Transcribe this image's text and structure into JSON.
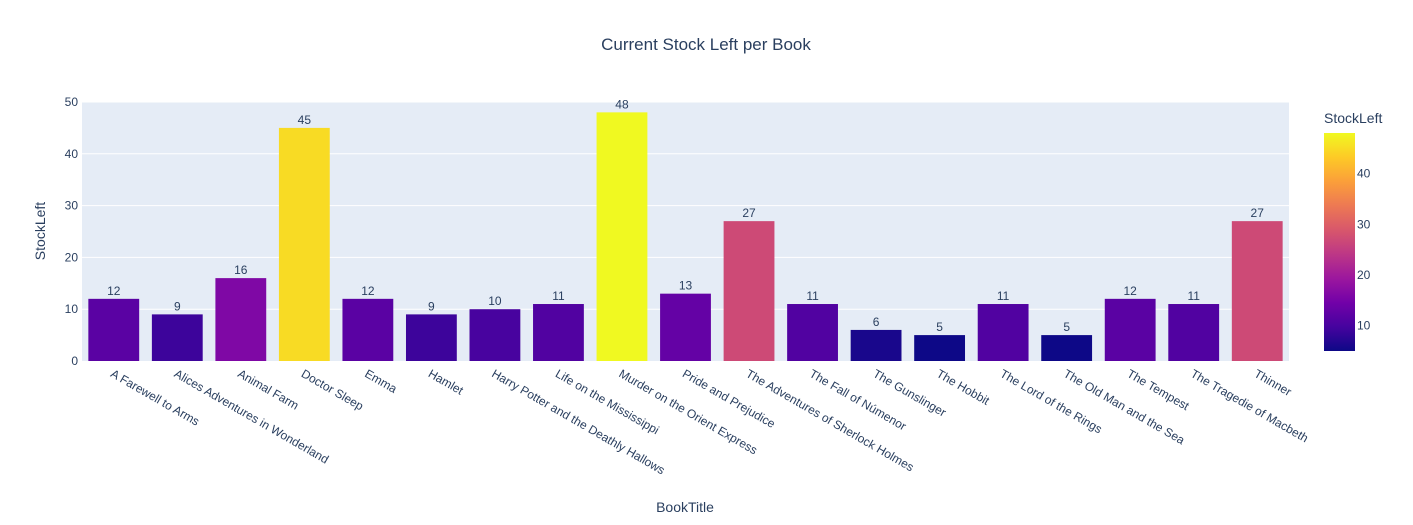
{
  "chart_data": {
    "type": "bar",
    "title": "Current Stock Left per Book",
    "xlabel": "BookTitle",
    "ylabel": "StockLeft",
    "ylim": [
      0,
      50
    ],
    "yticks": [
      0,
      10,
      20,
      30,
      40,
      50
    ],
    "grid": true,
    "categories": [
      "A Farewell to Arms",
      "Alices Adventures in Wonderland",
      "Animal Farm",
      "Doctor Sleep",
      "Emma",
      "Hamlet",
      "Harry Potter and the Deathly Hallows",
      "Life on the Mississippi",
      "Murder on the Orient Express",
      "Pride and Prejudice",
      "The Adventures of Sherlock Holmes",
      "The Fall of Númenor",
      "The Gunslinger",
      "The Hobbit",
      "The Lord of the Rings",
      "The Old Man and the Sea",
      "The Tempest",
      "The Tragedie of Macbeth",
      "Thinner"
    ],
    "values": [
      12,
      9,
      16,
      45,
      12,
      9,
      10,
      11,
      48,
      13,
      27,
      11,
      6,
      5,
      11,
      5,
      12,
      11,
      27
    ],
    "colorbar": {
      "title": "StockLeft",
      "range": [
        5,
        48
      ],
      "ticks": [
        10,
        20,
        30,
        40
      ],
      "colorscale": [
        "#0d0887",
        "#46039f",
        "#7201a8",
        "#9c179e",
        "#bd3786",
        "#d8576b",
        "#ed7953",
        "#fb9f3a",
        "#fdca26",
        "#f0f921"
      ]
    },
    "plot_bg": "#e5ecf6",
    "text_color": "#2a3f5f"
  }
}
